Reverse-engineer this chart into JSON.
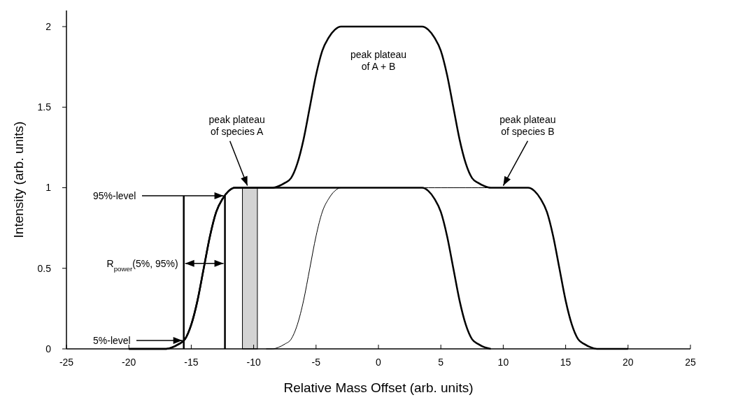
{
  "chart_data": {
    "type": "line",
    "xlabel": "Relative Mass Offset (arb. units)",
    "ylabel": "Intensity (arb. units)",
    "x": [
      -20,
      -19.5,
      -19,
      -18.5,
      -18,
      -17.5,
      -17,
      -16.5,
      -16,
      -15.5,
      -15,
      -14.5,
      -14,
      -13.5,
      -13,
      -12.5,
      -12,
      -11.5,
      -11,
      -10.5,
      -10,
      -9.5,
      -9,
      -8.5,
      -8,
      -7.5,
      -7,
      -6.5,
      -6,
      -5.5,
      -5,
      -4.5,
      -4,
      -3.5,
      -3,
      -2.5,
      -2,
      -1.5,
      -1,
      -0.5,
      0,
      0.5,
      1,
      1.5,
      2,
      2.5,
      3,
      3.5,
      4,
      4.5,
      5,
      5.5,
      6,
      6.5,
      7,
      7.5,
      8,
      8.5,
      9,
      9.5,
      10,
      10.5,
      11,
      11.5,
      12,
      12.5,
      13,
      13.5,
      14,
      14.5,
      15,
      15.5,
      16,
      16.5,
      17,
      17.5,
      18,
      18.5,
      19,
      19.5,
      20
    ],
    "series": [
      {
        "color": "#000000",
        "values": [
          0,
          0,
          0,
          0,
          0,
          0,
          0,
          0.01,
          0.03,
          0.06,
          0.15,
          0.3,
          0.5,
          0.7,
          0.85,
          0.93,
          0.98,
          1,
          1,
          1,
          1,
          1,
          1,
          1,
          1.01,
          1.03,
          1.06,
          1.15,
          1.3,
          1.5,
          1.7,
          1.85,
          1.93,
          1.98,
          2,
          2,
          2,
          2,
          2,
          2,
          2,
          2,
          2,
          2,
          2,
          2,
          2,
          2,
          1.98,
          1.93,
          1.85,
          1.7,
          1.5,
          1.3,
          1.15,
          1.06,
          1.03,
          1.01,
          1,
          1,
          1,
          1,
          1,
          1,
          1,
          0.98,
          0.93,
          0.85,
          0.7,
          0.5,
          0.3,
          0.15,
          0.06,
          0.03,
          0.01,
          0,
          0,
          0,
          0,
          0,
          0
        ]
      },
      {
        "color": "#000000",
        "x": [
          -20,
          -19.5,
          -19,
          -18.5,
          -18,
          -17.5,
          -17,
          -16.5,
          -16,
          -15.5,
          -15,
          -14.5,
          -14,
          -13.5,
          -13,
          -12.5,
          -12,
          -11.5,
          -11,
          -10.5,
          -10,
          -9.5,
          -9,
          -8.5,
          -8,
          -7.5,
          -7,
          -6.5,
          -6,
          -5.5,
          -5,
          -4.5,
          -4,
          -3.5,
          -3,
          -2.5,
          -2,
          -1.5,
          -1,
          -0.5,
          0,
          0.5,
          1,
          1.5,
          2,
          2.5,
          3,
          3.5,
          4,
          4.5,
          5,
          5.5,
          6,
          6.5,
          7,
          7.5,
          8,
          8.5,
          9
        ],
        "values": [
          0,
          0,
          0,
          0,
          0,
          0,
          0,
          0.01,
          0.03,
          0.06,
          0.15,
          0.3,
          0.5,
          0.7,
          0.85,
          0.93,
          0.98,
          1,
          1,
          1,
          1,
          1,
          1,
          1,
          1,
          1,
          1,
          1,
          1,
          1,
          1,
          1,
          1,
          1,
          1,
          1,
          1,
          1,
          1,
          1,
          1,
          1,
          1,
          1,
          1,
          1,
          1,
          1,
          0.98,
          0.93,
          0.85,
          0.7,
          0.5,
          0.3,
          0.15,
          0.06,
          0.03,
          0.01,
          0
        ]
      },
      {
        "color": "#000000",
        "x": [
          -9,
          -8.5,
          -8,
          -7.5,
          -7,
          -6.5,
          -6,
          -5.5,
          -5,
          -4.5,
          -4,
          -3.5,
          -3,
          -2.5,
          -2,
          -1.5,
          -1,
          -0.5,
          0,
          0.5,
          1,
          1.5,
          2,
          2.5,
          3,
          3.5,
          4,
          4.5,
          5,
          5.5,
          6,
          6.5,
          7,
          7.5,
          8,
          8.5,
          9,
          9.5,
          10,
          10.5,
          11,
          11.5,
          12,
          12.5,
          13,
          13.5,
          14,
          14.5,
          15,
          15.5,
          16,
          16.5,
          17,
          17.5,
          18,
          18.5,
          19,
          19.5,
          20
        ],
        "values": [
          0,
          0,
          0.01,
          0.03,
          0.06,
          0.15,
          0.3,
          0.5,
          0.7,
          0.85,
          0.93,
          0.98,
          1,
          1,
          1,
          1,
          1,
          1,
          1,
          1,
          1,
          1,
          1,
          1,
          1,
          1,
          1,
          1,
          1,
          1,
          1,
          1,
          1,
          1,
          1,
          1,
          1,
          1,
          1,
          1,
          1,
          1,
          1,
          0.98,
          0.93,
          0.85,
          0.7,
          0.5,
          0.3,
          0.15,
          0.06,
          0.03,
          0.01,
          0,
          0,
          0,
          0,
          0,
          0
        ]
      }
    ],
    "xlim": [
      -25,
      25
    ],
    "xticks": [
      -25,
      -20,
      -15,
      -10,
      -5,
      0,
      5,
      10,
      15,
      20,
      25
    ],
    "ylim": [
      0,
      2.1
    ],
    "yticks": [
      0,
      0.5,
      1,
      1.5,
      2
    ],
    "ref_lines": [
      {
        "axis": "x",
        "value": -15.6,
        "color": "#000000"
      },
      {
        "axis": "x",
        "value": -12.3,
        "color": "#000000"
      }
    ],
    "bands": [
      {
        "axis": "x",
        "from": -10.9,
        "to": -9.7,
        "color": "#d3d3d3"
      }
    ],
    "annotations": [
      {
        "text": "peak plateau\nof species A",
        "x": -10.5,
        "y": 1
      },
      {
        "text": "peak plateau\nof species B",
        "x": 10,
        "y": 1
      },
      {
        "text": "peak plateau\nof  A + B",
        "x": 0,
        "y": 2
      },
      {
        "text": "95%-level",
        "x": -12.3,
        "y": 0.95
      },
      "5%-level",
      {
        "text": "R$_{power}$(5%, 95%)",
        "x": -14,
        "y": 0.53
      }
    ]
  }
}
